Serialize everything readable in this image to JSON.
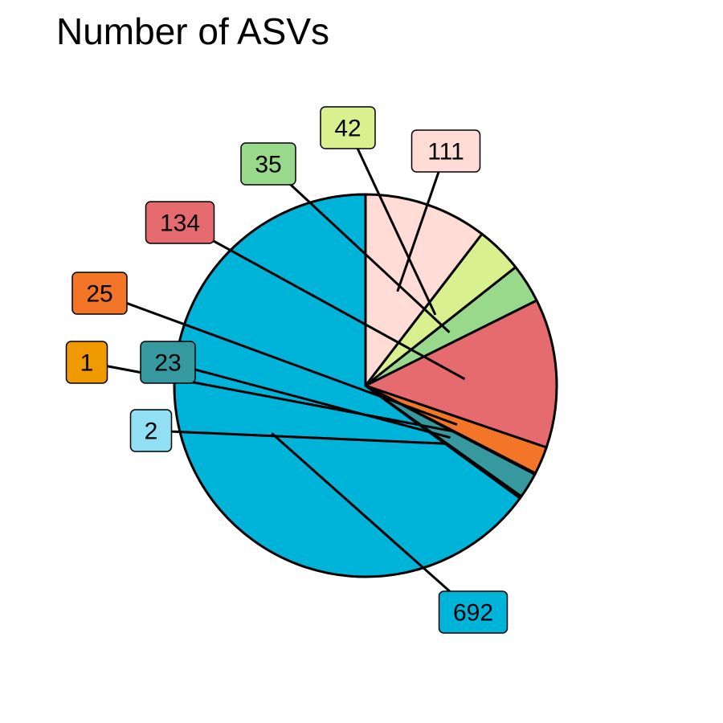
{
  "chart_data": {
    "type": "pie",
    "title": "Number of ASVs",
    "start": "top",
    "direction": "counterclockwise",
    "slices": [
      {
        "label": "692",
        "value": 692,
        "color": "#00B3D9"
      },
      {
        "label": "2",
        "value": 2,
        "color": "#90DFF2"
      },
      {
        "label": "23",
        "value": 23,
        "color": "#35999F"
      },
      {
        "label": "1",
        "value": 1,
        "color": "#EE9A00"
      },
      {
        "label": "25",
        "value": 25,
        "color": "#F27528"
      },
      {
        "label": "134",
        "value": 134,
        "color": "#E56B6F"
      },
      {
        "label": "35",
        "value": 35,
        "color": "#99D98C"
      },
      {
        "label": "42",
        "value": 42,
        "color": "#D9F08F"
      },
      {
        "label": "111",
        "value": 111,
        "color": "#FFDCD5"
      }
    ]
  }
}
